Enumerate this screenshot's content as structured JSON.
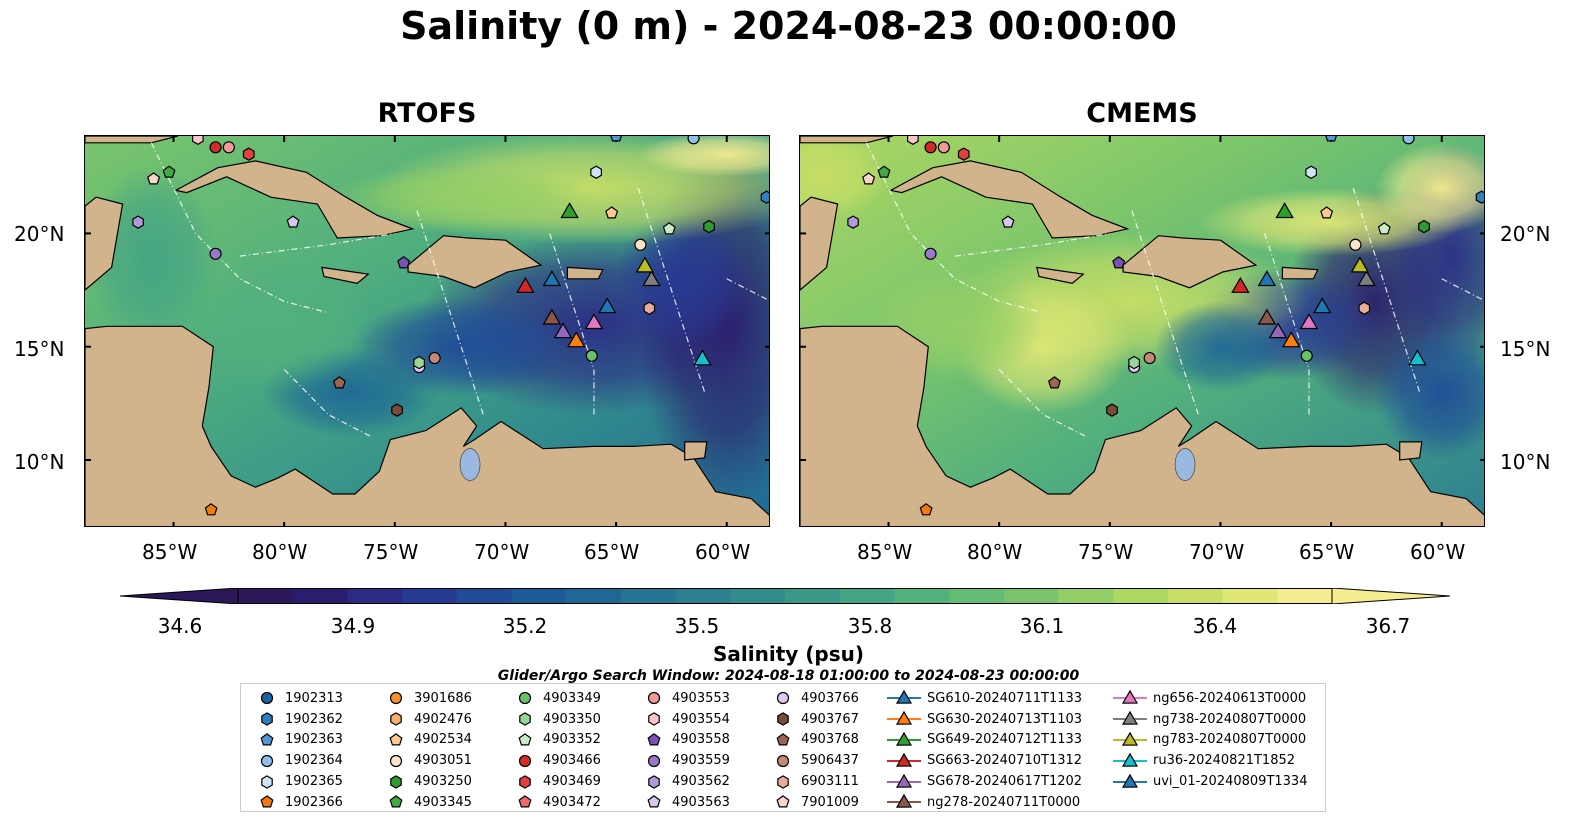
{
  "figure": {
    "title": "Salinity (0 m) - 2024-08-23 00:00:00",
    "panels": [
      "RTOFS",
      "CMEMS"
    ]
  },
  "axes": {
    "lat_ticks": [
      "20°N",
      "15°N",
      "10°N"
    ],
    "lon_ticks": [
      "85°W",
      "80°W",
      "75°W",
      "70°W",
      "65°W",
      "60°W"
    ]
  },
  "colorbar": {
    "label": "Salinity (psu)",
    "ticks": [
      "34.6",
      "34.9",
      "35.2",
      "35.5",
      "35.8",
      "36.1",
      "36.4",
      "36.7"
    ],
    "colors": [
      "#2a1858",
      "#2b1d6e",
      "#2b2b85",
      "#273a94",
      "#1f4c98",
      "#1b5b97",
      "#1e6895",
      "#257493",
      "#2c7f91",
      "#338b8e",
      "#3a9889",
      "#44a484",
      "#52b07d",
      "#64bb74",
      "#7ac56c",
      "#94ce66",
      "#aed763",
      "#c9df66",
      "#e0e775",
      "#f5ec8f"
    ],
    "extend": "both"
  },
  "search_window": "Glider/Argo Search Window: 2024-08-18 01:00:00 to 2024-08-23 00:00:00",
  "colors": {
    "land": "#d2b48c",
    "lake": "#9ab8e0"
  },
  "legend": {
    "columns": [
      [
        {
          "label": "1902313",
          "color": "#1f5fa6",
          "marker": "circle"
        },
        {
          "label": "1902362",
          "color": "#2f7fc1",
          "marker": "hexagon"
        },
        {
          "label": "1902363",
          "color": "#4f97d5",
          "marker": "pentagon"
        },
        {
          "label": "1902364",
          "color": "#8fc0ea",
          "marker": "circle"
        },
        {
          "label": "1902365",
          "color": "#cfe3f7",
          "marker": "hexagon"
        },
        {
          "label": "1902366",
          "color": "#f07b10",
          "marker": "pentagon"
        }
      ],
      [
        {
          "label": "3901686",
          "color": "#f5902a",
          "marker": "circle"
        },
        {
          "label": "4902476",
          "color": "#f7ad6b",
          "marker": "hexagon"
        },
        {
          "label": "4902534",
          "color": "#fbc894",
          "marker": "pentagon"
        },
        {
          "label": "4903051",
          "color": "#fde3c8",
          "marker": "circle"
        },
        {
          "label": "4903250",
          "color": "#2f9a2f",
          "marker": "hexagon"
        },
        {
          "label": "4903345",
          "color": "#43a843",
          "marker": "pentagon"
        }
      ],
      [
        {
          "label": "4903349",
          "color": "#69c069",
          "marker": "circle"
        },
        {
          "label": "4903350",
          "color": "#97d797",
          "marker": "hexagon"
        },
        {
          "label": "4903352",
          "color": "#c7ecc7",
          "marker": "pentagon"
        },
        {
          "label": "4903466",
          "color": "#d42a2a",
          "marker": "circle"
        },
        {
          "label": "4903469",
          "color": "#e04040",
          "marker": "hexagon"
        },
        {
          "label": "4903472",
          "color": "#ec6d6d",
          "marker": "pentagon"
        }
      ],
      [
        {
          "label": "4903553",
          "color": "#f29999",
          "marker": "circle"
        },
        {
          "label": "4903554",
          "color": "#f8c6c6",
          "marker": "hexagon"
        },
        {
          "label": "4903558",
          "color": "#7b52b5",
          "marker": "pentagon"
        },
        {
          "label": "4903559",
          "color": "#9a78c9",
          "marker": "circle"
        },
        {
          "label": "4903562",
          "color": "#b09ad8",
          "marker": "hexagon"
        },
        {
          "label": "4903563",
          "color": "#d6c8ef",
          "marker": "pentagon"
        }
      ],
      [
        {
          "label": "4903766",
          "color": "#e2c7f2",
          "marker": "circle"
        },
        {
          "label": "4903767",
          "color": "#7a4a3a",
          "marker": "hexagon"
        },
        {
          "label": "4903768",
          "color": "#9a6553",
          "marker": "pentagon"
        },
        {
          "label": "5906437",
          "color": "#c48a76",
          "marker": "circle"
        },
        {
          "label": "6903111",
          "color": "#e7ad99",
          "marker": "hexagon"
        },
        {
          "label": "7901009",
          "color": "#f9d5c7",
          "marker": "pentagon"
        }
      ],
      [
        {
          "label": "SG610-20240711T1133",
          "color": "#1f77b4",
          "marker": "triangle"
        },
        {
          "label": "SG630-20240713T1103",
          "color": "#ff7f0e",
          "marker": "triangle"
        },
        {
          "label": "SG649-20240712T1133",
          "color": "#2ca02c",
          "marker": "triangle"
        },
        {
          "label": "SG663-20240710T1312",
          "color": "#d62728",
          "marker": "triangle"
        },
        {
          "label": "SG678-20240617T1202",
          "color": "#9467bd",
          "marker": "triangle"
        },
        {
          "label": "ng278-20240711T0000",
          "color": "#8c564b",
          "marker": "triangle"
        }
      ],
      [
        {
          "label": "ng656-20240613T0000",
          "color": "#e377c2",
          "marker": "triangle"
        },
        {
          "label": "ng738-20240807T0000",
          "color": "#7f7f7f",
          "marker": "triangle"
        },
        {
          "label": "ng783-20240807T0000",
          "color": "#bcbd22",
          "marker": "triangle"
        },
        {
          "label": "ru36-20240821T1852",
          "color": "#17becf",
          "marker": "triangle"
        },
        {
          "label": "uvi_01-20240809T1334",
          "color": "#1f77b4",
          "marker": "triangle"
        }
      ]
    ]
  },
  "chart_data": {
    "type": "heatmap",
    "variable": "Salinity",
    "units": "psu",
    "depth": "0 m",
    "time": "2024-08-23 00:00:00",
    "color_range": [
      34.6,
      36.7
    ],
    "extent": {
      "lon": [
        -89,
        -58
      ],
      "lat": [
        7,
        24.3
      ]
    },
    "panels": [
      {
        "name": "RTOFS"
      },
      {
        "name": "CMEMS"
      }
    ],
    "observations": [
      {
        "id": "1902364",
        "lon": -61.5,
        "lat": 24.2,
        "marker": "circle",
        "color": "#8fc0ea"
      },
      {
        "id": "1902362",
        "lon": -58.2,
        "lat": 21.6,
        "marker": "hexagon",
        "color": "#2f7fc1"
      },
      {
        "id": "1902365",
        "lon": -65.9,
        "lat": 22.7,
        "marker": "hexagon",
        "color": "#cfe3f7"
      },
      {
        "id": "4902534",
        "lon": -65.2,
        "lat": 20.9,
        "marker": "pentagon",
        "color": "#fbc894"
      },
      {
        "id": "4903250",
        "lon": -60.8,
        "lat": 20.3,
        "marker": "hexagon",
        "color": "#2f9a2f"
      },
      {
        "id": "4903352",
        "lon": -62.6,
        "lat": 20.2,
        "marker": "pentagon",
        "color": "#c7ecc7"
      },
      {
        "id": "4903051",
        "lon": -63.9,
        "lat": 19.5,
        "marker": "circle",
        "color": "#fde3c8"
      },
      {
        "id": "4903466",
        "lon": -83.1,
        "lat": 23.8,
        "marker": "circle",
        "color": "#d42a2a"
      },
      {
        "id": "4903553",
        "lon": -82.5,
        "lat": 23.8,
        "marker": "circle",
        "color": "#f29999"
      },
      {
        "id": "4903469",
        "lon": -81.6,
        "lat": 23.5,
        "marker": "hexagon",
        "color": "#e04040"
      },
      {
        "id": "4903554",
        "lon": -83.9,
        "lat": 24.2,
        "marker": "hexagon",
        "color": "#f8c6c6"
      },
      {
        "id": "4903345",
        "lon": -85.2,
        "lat": 22.7,
        "marker": "pentagon",
        "color": "#43a843"
      },
      {
        "id": "7901009",
        "lon": -85.9,
        "lat": 22.4,
        "marker": "pentagon",
        "color": "#f9d5c7"
      },
      {
        "id": "4903562",
        "lon": -86.6,
        "lat": 20.5,
        "marker": "hexagon",
        "color": "#b09ad8"
      },
      {
        "id": "4903563",
        "lon": -79.6,
        "lat": 20.5,
        "marker": "pentagon",
        "color": "#d6c8ef"
      },
      {
        "id": "4903559",
        "lon": -83.1,
        "lat": 19.1,
        "marker": "circle",
        "color": "#9a78c9"
      },
      {
        "id": "4903558",
        "lon": -74.6,
        "lat": 18.7,
        "marker": "pentagon",
        "color": "#7b52b5"
      },
      {
        "id": "4903766",
        "lon": -73.9,
        "lat": 14.1,
        "marker": "circle",
        "color": "#e2c7f2"
      },
      {
        "id": "4903350",
        "lon": -73.9,
        "lat": 14.3,
        "marker": "hexagon",
        "color": "#97d797"
      },
      {
        "id": "5906437",
        "lon": -73.2,
        "lat": 14.5,
        "marker": "circle",
        "color": "#c48a76"
      },
      {
        "id": "4903768",
        "lon": -77.5,
        "lat": 13.4,
        "marker": "pentagon",
        "color": "#9a6553"
      },
      {
        "id": "4903767",
        "lon": -74.9,
        "lat": 12.2,
        "marker": "hexagon",
        "color": "#7a4a3a"
      },
      {
        "id": "4903349",
        "lon": -66.1,
        "lat": 14.6,
        "marker": "circle",
        "color": "#69c069"
      },
      {
        "id": "6903111",
        "lon": -63.5,
        "lat": 16.7,
        "marker": "hexagon",
        "color": "#e7ad99"
      },
      {
        "id": "1902366",
        "lon": -83.3,
        "lat": 7.8,
        "marker": "pentagon",
        "color": "#f07b10"
      },
      {
        "id": "1902363",
        "lon": -65.0,
        "lat": 24.3,
        "marker": "pentagon",
        "color": "#4f97d5"
      },
      {
        "id": "SG610-20240711T1133",
        "lon": -67.9,
        "lat": 18.0,
        "marker": "triangle",
        "color": "#1f77b4"
      },
      {
        "id": "SG630-20240713T1103",
        "lon": -66.8,
        "lat": 15.3,
        "marker": "triangle",
        "color": "#ff7f0e"
      },
      {
        "id": "SG649-20240712T1133",
        "lon": -67.1,
        "lat": 21.0,
        "marker": "triangle",
        "color": "#2ca02c"
      },
      {
        "id": "SG663-20240710T1312",
        "lon": -69.1,
        "lat": 17.7,
        "marker": "triangle",
        "color": "#d62728"
      },
      {
        "id": "SG678-20240617T1202",
        "lon": -67.4,
        "lat": 15.7,
        "marker": "triangle",
        "color": "#9467bd"
      },
      {
        "id": "ng278-20240711T0000",
        "lon": -67.9,
        "lat": 16.3,
        "marker": "triangle",
        "color": "#8c564b"
      },
      {
        "id": "ng656-20240613T0000",
        "lon": -66.0,
        "lat": 16.1,
        "marker": "triangle",
        "color": "#e377c2"
      },
      {
        "id": "ng738-20240807T0000",
        "lon": -63.4,
        "lat": 18.0,
        "marker": "triangle",
        "color": "#7f7f7f"
      },
      {
        "id": "ng783-20240807T0000",
        "lon": -63.7,
        "lat": 18.6,
        "marker": "triangle",
        "color": "#bcbd22"
      },
      {
        "id": "ru36-20240821T1852",
        "lon": -61.1,
        "lat": 14.5,
        "marker": "triangle",
        "color": "#17becf"
      },
      {
        "id": "uvi_01-20240809T1334",
        "lon": -65.4,
        "lat": 16.8,
        "marker": "triangle",
        "color": "#1f77b4"
      }
    ]
  }
}
